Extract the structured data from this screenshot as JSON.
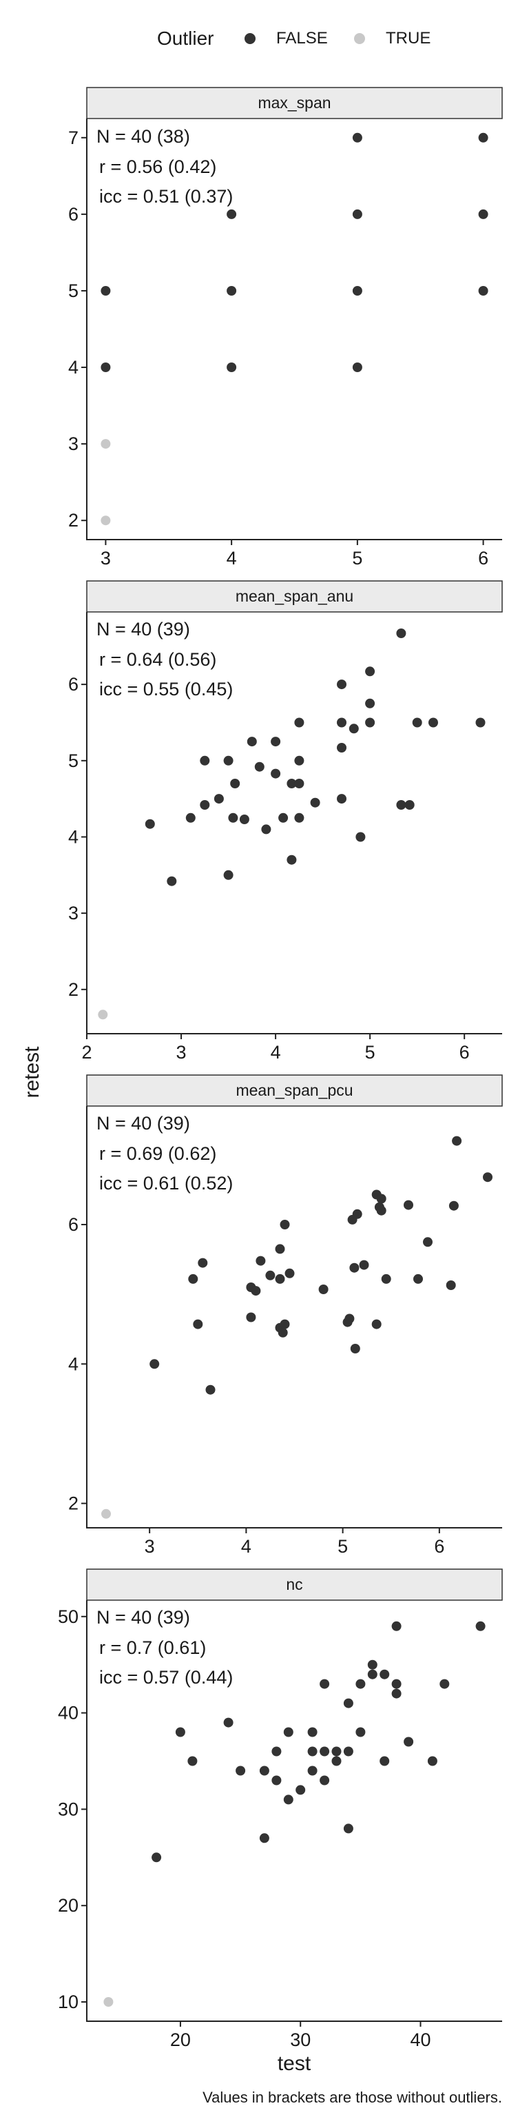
{
  "legend": {
    "title": "Outlier",
    "items": [
      {
        "label": "FALSE",
        "color": "#333333"
      },
      {
        "label": "TRUE",
        "color": "#c8c8c8"
      }
    ]
  },
  "axes": {
    "xlabel": "test",
    "ylabel": "retest"
  },
  "caption": "Values in brackets are those without outliers.",
  "chart_data": [
    {
      "type": "scatter",
      "title": "max_span",
      "annotations": [
        "N = 40 (38)",
        "r = 0.56 (0.42)",
        "icc = 0.51 (0.37)"
      ],
      "xlim": [
        2.85,
        6.15
      ],
      "ylim": [
        1.75,
        7.25
      ],
      "xticks": [
        3,
        4,
        5,
        6
      ],
      "yticks": [
        2,
        3,
        4,
        5,
        6,
        7
      ],
      "points": [
        {
          "x": 3,
          "y": 5,
          "outlier": false
        },
        {
          "x": 3,
          "y": 4,
          "outlier": false
        },
        {
          "x": 3,
          "y": 3,
          "outlier": true
        },
        {
          "x": 3,
          "y": 2,
          "outlier": true
        },
        {
          "x": 4,
          "y": 6,
          "outlier": false
        },
        {
          "x": 4,
          "y": 5,
          "outlier": false
        },
        {
          "x": 4,
          "y": 4,
          "outlier": false
        },
        {
          "x": 5,
          "y": 7,
          "outlier": false
        },
        {
          "x": 5,
          "y": 6,
          "outlier": false
        },
        {
          "x": 5,
          "y": 5,
          "outlier": false
        },
        {
          "x": 5,
          "y": 4,
          "outlier": false
        },
        {
          "x": 6,
          "y": 7,
          "outlier": false
        },
        {
          "x": 6,
          "y": 6,
          "outlier": false
        },
        {
          "x": 6,
          "y": 5,
          "outlier": false
        }
      ]
    },
    {
      "type": "scatter",
      "title": "mean_span_anu",
      "annotations": [
        "N = 40 (39)",
        "r = 0.64 (0.56)",
        "icc = 0.55 (0.45)"
      ],
      "xlim": [
        2.0,
        6.4
      ],
      "ylim": [
        1.42,
        6.95
      ],
      "xticks": [
        2,
        3,
        4,
        5,
        6
      ],
      "yticks": [
        2,
        3,
        4,
        5,
        6
      ],
      "points": [
        {
          "x": 2.17,
          "y": 1.67,
          "outlier": true
        },
        {
          "x": 2.67,
          "y": 4.17,
          "outlier": false
        },
        {
          "x": 2.9,
          "y": 3.42,
          "outlier": false
        },
        {
          "x": 3.1,
          "y": 4.25,
          "outlier": false
        },
        {
          "x": 3.25,
          "y": 4.42,
          "outlier": false
        },
        {
          "x": 3.25,
          "y": 5.0,
          "outlier": false
        },
        {
          "x": 3.4,
          "y": 4.5,
          "outlier": false
        },
        {
          "x": 3.5,
          "y": 5.0,
          "outlier": false
        },
        {
          "x": 3.5,
          "y": 3.5,
          "outlier": false
        },
        {
          "x": 3.55,
          "y": 4.25,
          "outlier": false
        },
        {
          "x": 3.57,
          "y": 4.7,
          "outlier": false
        },
        {
          "x": 3.67,
          "y": 4.23,
          "outlier": false
        },
        {
          "x": 3.75,
          "y": 5.25,
          "outlier": false
        },
        {
          "x": 3.83,
          "y": 4.92,
          "outlier": false
        },
        {
          "x": 3.9,
          "y": 4.1,
          "outlier": false
        },
        {
          "x": 4.0,
          "y": 5.25,
          "outlier": false
        },
        {
          "x": 4.0,
          "y": 4.83,
          "outlier": false
        },
        {
          "x": 4.08,
          "y": 4.25,
          "outlier": false
        },
        {
          "x": 4.17,
          "y": 4.7,
          "outlier": false
        },
        {
          "x": 4.17,
          "y": 3.7,
          "outlier": false
        },
        {
          "x": 4.25,
          "y": 5.5,
          "outlier": false
        },
        {
          "x": 4.25,
          "y": 5.0,
          "outlier": false
        },
        {
          "x": 4.25,
          "y": 4.7,
          "outlier": false
        },
        {
          "x": 4.25,
          "y": 4.25,
          "outlier": false
        },
        {
          "x": 4.42,
          "y": 4.45,
          "outlier": false
        },
        {
          "x": 4.7,
          "y": 6.0,
          "outlier": false
        },
        {
          "x": 4.7,
          "y": 5.5,
          "outlier": false
        },
        {
          "x": 4.7,
          "y": 5.17,
          "outlier": false
        },
        {
          "x": 4.7,
          "y": 4.5,
          "outlier": false
        },
        {
          "x": 4.83,
          "y": 5.42,
          "outlier": false
        },
        {
          "x": 4.9,
          "y": 4.0,
          "outlier": false
        },
        {
          "x": 5.0,
          "y": 6.17,
          "outlier": false
        },
        {
          "x": 5.0,
          "y": 5.75,
          "outlier": false
        },
        {
          "x": 5.0,
          "y": 5.5,
          "outlier": false
        },
        {
          "x": 5.33,
          "y": 6.67,
          "outlier": false
        },
        {
          "x": 5.33,
          "y": 4.42,
          "outlier": false
        },
        {
          "x": 5.42,
          "y": 4.42,
          "outlier": false
        },
        {
          "x": 5.5,
          "y": 5.5,
          "outlier": false
        },
        {
          "x": 5.67,
          "y": 5.5,
          "outlier": false
        },
        {
          "x": 6.17,
          "y": 5.5,
          "outlier": false
        }
      ]
    },
    {
      "type": "scatter",
      "title": "mean_span_pcu",
      "annotations": [
        "N = 40 (39)",
        "r = 0.69 (0.62)",
        "icc = 0.61 (0.52)"
      ],
      "xlim": [
        2.35,
        6.65
      ],
      "ylim": [
        1.65,
        7.7
      ],
      "xticks": [
        3,
        4,
        5,
        6
      ],
      "yticks": [
        2,
        4,
        6
      ],
      "points": [
        {
          "x": 2.55,
          "y": 1.85,
          "outlier": true
        },
        {
          "x": 3.05,
          "y": 4.0,
          "outlier": false
        },
        {
          "x": 3.45,
          "y": 5.22,
          "outlier": false
        },
        {
          "x": 3.5,
          "y": 4.57,
          "outlier": false
        },
        {
          "x": 3.55,
          "y": 5.45,
          "outlier": false
        },
        {
          "x": 3.63,
          "y": 3.63,
          "outlier": false
        },
        {
          "x": 4.05,
          "y": 5.1,
          "outlier": false
        },
        {
          "x": 4.05,
          "y": 4.67,
          "outlier": false
        },
        {
          "x": 4.1,
          "y": 5.05,
          "outlier": false
        },
        {
          "x": 4.15,
          "y": 5.48,
          "outlier": false
        },
        {
          "x": 4.25,
          "y": 5.27,
          "outlier": false
        },
        {
          "x": 4.35,
          "y": 5.65,
          "outlier": false
        },
        {
          "x": 4.35,
          "y": 5.22,
          "outlier": false
        },
        {
          "x": 4.35,
          "y": 4.52,
          "outlier": false
        },
        {
          "x": 4.38,
          "y": 4.45,
          "outlier": false
        },
        {
          "x": 4.4,
          "y": 6.0,
          "outlier": false
        },
        {
          "x": 4.4,
          "y": 4.57,
          "outlier": false
        },
        {
          "x": 4.45,
          "y": 5.3,
          "outlier": false
        },
        {
          "x": 4.8,
          "y": 5.07,
          "outlier": false
        },
        {
          "x": 5.05,
          "y": 4.6,
          "outlier": false
        },
        {
          "x": 5.07,
          "y": 4.65,
          "outlier": false
        },
        {
          "x": 5.1,
          "y": 6.07,
          "outlier": false
        },
        {
          "x": 5.12,
          "y": 5.38,
          "outlier": false
        },
        {
          "x": 5.13,
          "y": 4.22,
          "outlier": false
        },
        {
          "x": 5.15,
          "y": 6.15,
          "outlier": false
        },
        {
          "x": 5.22,
          "y": 5.42,
          "outlier": false
        },
        {
          "x": 5.35,
          "y": 6.43,
          "outlier": false
        },
        {
          "x": 5.35,
          "y": 4.57,
          "outlier": false
        },
        {
          "x": 5.38,
          "y": 6.25,
          "outlier": false
        },
        {
          "x": 5.4,
          "y": 6.37,
          "outlier": false
        },
        {
          "x": 5.4,
          "y": 6.2,
          "outlier": false
        },
        {
          "x": 5.45,
          "y": 5.22,
          "outlier": false
        },
        {
          "x": 5.68,
          "y": 6.28,
          "outlier": false
        },
        {
          "x": 5.78,
          "y": 5.22,
          "outlier": false
        },
        {
          "x": 5.88,
          "y": 5.75,
          "outlier": false
        },
        {
          "x": 6.12,
          "y": 5.13,
          "outlier": false
        },
        {
          "x": 6.15,
          "y": 6.27,
          "outlier": false
        },
        {
          "x": 6.18,
          "y": 7.2,
          "outlier": false
        },
        {
          "x": 6.5,
          "y": 6.68,
          "outlier": false
        }
      ]
    },
    {
      "type": "scatter",
      "title": "nc",
      "annotations": [
        "N = 40 (39)",
        "r = 0.7 (0.61)",
        "icc = 0.57 (0.44)"
      ],
      "xlim": [
        12.2,
        46.8
      ],
      "ylim": [
        8.0,
        51.7
      ],
      "xticks": [
        20,
        30,
        40
      ],
      "yticks": [
        10,
        20,
        30,
        40,
        50
      ],
      "points": [
        {
          "x": 14,
          "y": 10,
          "outlier": true
        },
        {
          "x": 18,
          "y": 25,
          "outlier": false
        },
        {
          "x": 20,
          "y": 38,
          "outlier": false
        },
        {
          "x": 21,
          "y": 35,
          "outlier": false
        },
        {
          "x": 24,
          "y": 39,
          "outlier": false
        },
        {
          "x": 25,
          "y": 34,
          "outlier": false
        },
        {
          "x": 27,
          "y": 27,
          "outlier": false
        },
        {
          "x": 27,
          "y": 34,
          "outlier": false
        },
        {
          "x": 28,
          "y": 36,
          "outlier": false
        },
        {
          "x": 28,
          "y": 33,
          "outlier": false
        },
        {
          "x": 29,
          "y": 38,
          "outlier": false
        },
        {
          "x": 29,
          "y": 31,
          "outlier": false
        },
        {
          "x": 30,
          "y": 32,
          "outlier": false
        },
        {
          "x": 31,
          "y": 38,
          "outlier": false
        },
        {
          "x": 31,
          "y": 36,
          "outlier": false
        },
        {
          "x": 31,
          "y": 34,
          "outlier": false
        },
        {
          "x": 32,
          "y": 43,
          "outlier": false
        },
        {
          "x": 32,
          "y": 36,
          "outlier": false
        },
        {
          "x": 32,
          "y": 33,
          "outlier": false
        },
        {
          "x": 33,
          "y": 36,
          "outlier": false
        },
        {
          "x": 33,
          "y": 35,
          "outlier": false
        },
        {
          "x": 34,
          "y": 41,
          "outlier": false
        },
        {
          "x": 34,
          "y": 36,
          "outlier": false
        },
        {
          "x": 34,
          "y": 28,
          "outlier": false
        },
        {
          "x": 35,
          "y": 43,
          "outlier": false
        },
        {
          "x": 35,
          "y": 38,
          "outlier": false
        },
        {
          "x": 36,
          "y": 45,
          "outlier": false
        },
        {
          "x": 36,
          "y": 44,
          "outlier": false
        },
        {
          "x": 37,
          "y": 44,
          "outlier": false
        },
        {
          "x": 37,
          "y": 35,
          "outlier": false
        },
        {
          "x": 38,
          "y": 49,
          "outlier": false
        },
        {
          "x": 38,
          "y": 43,
          "outlier": false
        },
        {
          "x": 38,
          "y": 42,
          "outlier": false
        },
        {
          "x": 39,
          "y": 37,
          "outlier": false
        },
        {
          "x": 41,
          "y": 35,
          "outlier": false
        },
        {
          "x": 42,
          "y": 43,
          "outlier": false
        },
        {
          "x": 45,
          "y": 49,
          "outlier": false
        }
      ]
    }
  ]
}
